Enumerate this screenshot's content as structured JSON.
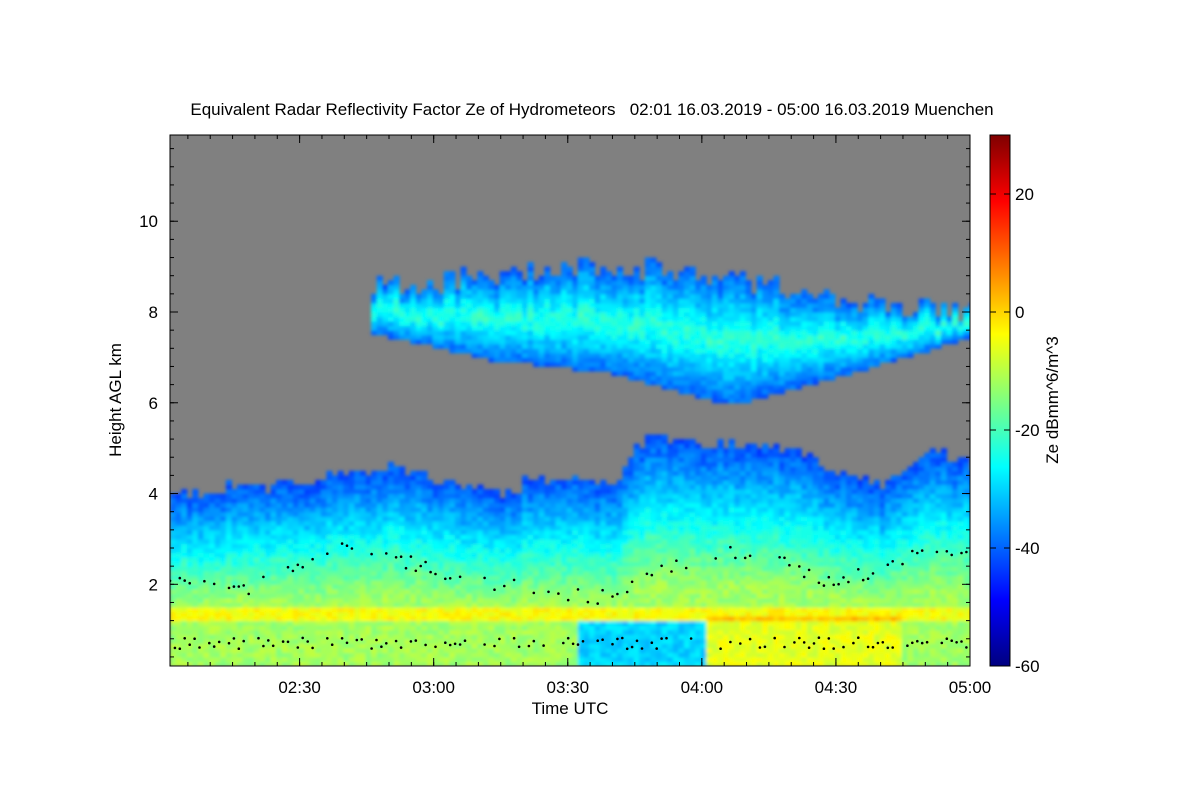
{
  "chart_data": {
    "type": "heatmap",
    "title": "Equivalent Radar Reflectivity Factor Ze of Hydrometeors   02:01 16.03.2019 - 05:00 16.03.2019 Muenchen",
    "xlabel": "Time UTC",
    "ylabel": "Height AGL km",
    "colorbar_label": "Ze dBmm^6/m^3",
    "xlim": [
      "02:01",
      "05:00"
    ],
    "ylim": [
      0.2,
      11.9
    ],
    "clim": [
      -60,
      30
    ],
    "x_ticks": [
      "02:30",
      "03:00",
      "03:30",
      "04:00",
      "04:30",
      "05:00"
    ],
    "y_ticks": [
      2,
      4,
      6,
      8,
      10
    ],
    "colorbar_ticks": [
      -60,
      -40,
      -20,
      0,
      20
    ],
    "no_signal_color": "#808080",
    "colormap": "jet",
    "cloud_top_km": {
      "time": [
        "02:01",
        "02:10",
        "02:15",
        "02:20",
        "02:30",
        "02:40",
        "02:50",
        "03:00",
        "03:10",
        "03:15",
        "03:20",
        "03:30",
        "03:40",
        "03:45",
        "03:50",
        "04:00",
        "04:10",
        "04:20",
        "04:30",
        "04:40",
        "04:50",
        "05:00"
      ],
      "height": [
        4.0,
        3.95,
        4.15,
        4.1,
        4.2,
        4.4,
        4.5,
        4.3,
        4.1,
        3.85,
        4.2,
        4.3,
        4.2,
        5.0,
        5.2,
        5.1,
        5.0,
        4.9,
        4.4,
        4.1,
        4.9,
        4.6
      ]
    },
    "upper_layer_km": {
      "time_start": "02:45",
      "time_end": "05:00",
      "base_height": [
        7.5,
        6.9,
        6.6,
        5.9,
        6.6,
        7.4
      ],
      "top_height": [
        8.5,
        8.7,
        9.0,
        8.7,
        8.2,
        8.0
      ]
    },
    "bright_band_km": 1.3,
    "black_dot_series": {
      "name": "",
      "lower_km": 0.7,
      "upper_time": [
        "02:01",
        "02:20",
        "02:40",
        "03:00",
        "03:20",
        "03:40",
        "04:00",
        "04:15",
        "04:30",
        "04:45"
      ],
      "upper_height": [
        2.1,
        1.9,
        3.0,
        2.3,
        1.9,
        1.7,
        2.7,
        2.6,
        2.0,
        2.6
      ]
    }
  }
}
